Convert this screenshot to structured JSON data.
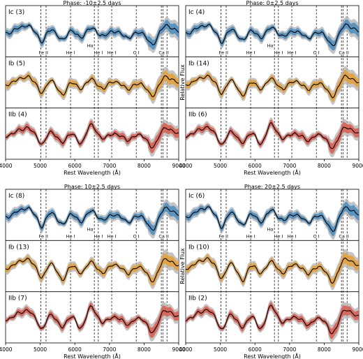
{
  "chart_data": [
    {
      "type": "line",
      "title": "Phase: -10±2.5 days",
      "xlabel": "Rest Wavelength (Å)",
      "ylabel": "",
      "xlim": [
        4000,
        9000
      ],
      "xticks": [
        "4000",
        "5000",
        "6000",
        "7000",
        "8000",
        "9000"
      ],
      "grid": false,
      "rows": [
        {
          "label": "Ic (3)",
          "color": "#4f8fc0"
        },
        {
          "label": "Ib (5)",
          "color": "#e4a23a"
        },
        {
          "label": "IIb (4)",
          "color": "#dd5f52"
        }
      ]
    },
    {
      "type": "line",
      "title": "Phase: 0±2.5 days",
      "xlabel": "Rest Wavelength (Å)",
      "ylabel": "Relative Flux",
      "xlim": [
        4000,
        9000
      ],
      "xticks": [
        "4000",
        "5000",
        "6000",
        "7000",
        "8000",
        "9000"
      ],
      "grid": false,
      "rows": [
        {
          "label": "Ic (4)",
          "color": "#4f8fc0"
        },
        {
          "label": "Ib (14)",
          "color": "#e4a23a"
        },
        {
          "label": "IIb (6)",
          "color": "#dd5f52"
        }
      ]
    },
    {
      "type": "line",
      "title": "Phase: 10±2.5 days",
      "xlabel": "Rest Wavelength (Å)",
      "ylabel": "",
      "xlim": [
        4000,
        9000
      ],
      "xticks": [
        "4000",
        "5000",
        "6000",
        "7000",
        "8000",
        "9000"
      ],
      "grid": false,
      "rows": [
        {
          "label": "Ic (8)",
          "color": "#4f8fc0"
        },
        {
          "label": "Ib (13)",
          "color": "#e4a23a"
        },
        {
          "label": "IIb (7)",
          "color": "#dd5f52"
        }
      ]
    },
    {
      "type": "line",
      "title": "Phase: 20±2.5 days",
      "xlabel": "Rest Wavelength (Å)",
      "ylabel": "Relative Flux",
      "xlim": [
        4000,
        9000
      ],
      "xticks": [
        "4000",
        "5000",
        "6000",
        "7000",
        "8000",
        "9000"
      ],
      "grid": false,
      "rows": [
        {
          "label": "Ic (6)",
          "color": "#4f8fc0"
        },
        {
          "label": "Ib (10)",
          "color": "#e4a23a"
        },
        {
          "label": "IIb (2)",
          "color": "#dd5f52"
        }
      ]
    }
  ],
  "line_ids": [
    {
      "label": "Fe II",
      "wavelengths": [
        5018,
        5169
      ]
    },
    {
      "label": "He I",
      "wavelengths": [
        5876
      ]
    },
    {
      "label": "Hα",
      "wavelengths": [
        6563
      ]
    },
    {
      "label": "He I",
      "wavelengths": [
        6678
      ]
    },
    {
      "label": "He I",
      "wavelengths": [
        7065
      ]
    },
    {
      "label": "O I",
      "wavelengths": [
        7774
      ]
    },
    {
      "label": "Ca II",
      "wavelengths": [
        8498,
        8542,
        8662
      ]
    }
  ],
  "colors": {
    "mean_line": "#000000",
    "band_fill": "#b0b0b0"
  }
}
